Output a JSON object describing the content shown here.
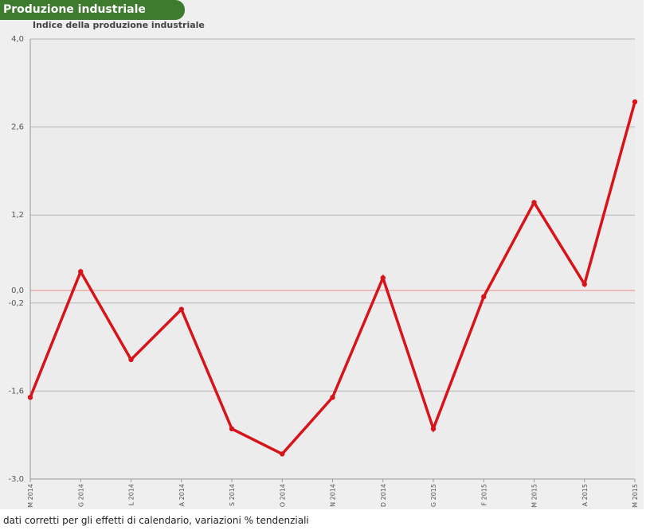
{
  "header": {
    "title": "Produzione industriale"
  },
  "chart_data": {
    "type": "line",
    "title": "Indice della produzione industriale",
    "xlabel": "",
    "ylabel": "",
    "categories": [
      "M 2014",
      "G 2014",
      "L 2014",
      "A 2014",
      "S 2014",
      "O 2014",
      "N 2014",
      "D 2014",
      "G 2015",
      "F 2015",
      "M 2015",
      "A 2015",
      "M 2015"
    ],
    "series": [
      {
        "values": [
          -1.7,
          0.3,
          -1.1,
          -0.3,
          -2.2,
          -2.6,
          -1.7,
          0.2,
          -2.2,
          -0.1,
          1.4,
          0.1,
          3.0
        ],
        "color": "#d7141a"
      }
    ],
    "ylim": [
      -3.0,
      4.0
    ],
    "yticks": [
      -3.0,
      -1.6,
      -0.2,
      0.0,
      1.2,
      2.6,
      4.0
    ],
    "ytick_labels": [
      "-3,0",
      "-1,6",
      "-0,2",
      "0,0",
      "1,2",
      "2,6",
      "4,0"
    ],
    "zero_line_color": "#e88a8a",
    "grid": true,
    "legend": "none"
  },
  "footer": {
    "note": "dati corretti per gli effetti di calendario, variazioni % tendenziali"
  },
  "colors": {
    "header_bg": "#3f7b2f",
    "panel_bg": "#efefef",
    "series": "#d7141a"
  }
}
